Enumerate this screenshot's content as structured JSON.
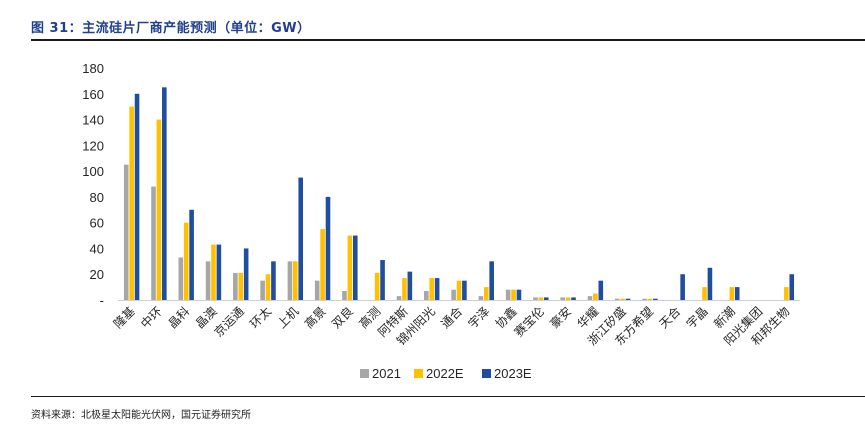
{
  "figure": {
    "title": "图 31：主流硅片厂商产能预测（单位：GW）",
    "source": "资料来源：北极星太阳能光伏网，国元证券研究所"
  },
  "colors": {
    "title": "#1f3f8f",
    "series": [
      "#a6a6a6",
      "#ffc000",
      "#1f4e9e"
    ]
  },
  "chart_data": {
    "type": "bar",
    "title": "图 31：主流硅片厂商产能预测（单位：GW）",
    "xlabel": "",
    "ylabel": "",
    "ylim": [
      0,
      180
    ],
    "yticks": [
      0,
      20,
      40,
      60,
      80,
      100,
      120,
      140,
      160,
      180
    ],
    "ytick_labels": [
      "-",
      "20",
      "40",
      "60",
      "80",
      "100",
      "120",
      "140",
      "160",
      "180"
    ],
    "grid": false,
    "legend": "bottom",
    "categories": [
      "隆基",
      "中环",
      "晶科",
      "晶澳",
      "京运通",
      "环太",
      "上机",
      "高景",
      "双良",
      "高测",
      "阿特斯",
      "锦州阳光",
      "通合",
      "宇泽",
      "协鑫",
      "赛宝伦",
      "豪安",
      "华耀",
      "浙江矽盛",
      "东方希望",
      "天合",
      "宇晶",
      "新潮",
      "阳光集团",
      "和邦生物"
    ],
    "series": [
      {
        "name": "2021",
        "values": [
          105,
          88,
          33,
          30,
          21,
          15,
          30,
          15,
          7,
          0,
          3,
          7,
          8,
          3,
          8,
          2,
          2,
          3,
          1,
          1,
          0,
          0,
          0,
          0,
          0
        ]
      },
      {
        "name": "2022E",
        "values": [
          150,
          140,
          60,
          43,
          21,
          20,
          30,
          55,
          50,
          21,
          17,
          17,
          15,
          10,
          8,
          2,
          2,
          5,
          1,
          1,
          0,
          10,
          10,
          0,
          10
        ]
      },
      {
        "name": "2023E",
        "values": [
          160,
          165,
          70,
          43,
          40,
          30,
          95,
          80,
          50,
          31,
          22,
          17,
          15,
          30,
          8,
          2,
          2,
          15,
          1,
          1,
          20,
          25,
          10,
          0,
          20
        ]
      }
    ]
  }
}
